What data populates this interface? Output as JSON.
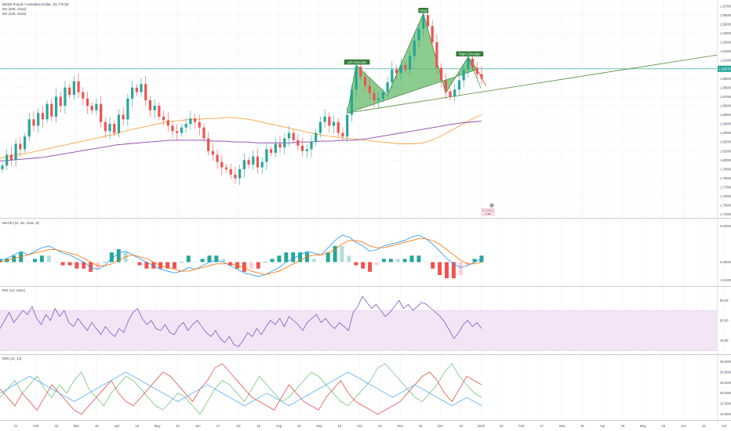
{
  "legend": {
    "symbol": "British Pound / Australian Dollar, 1D, FXCM",
    "ma200": "MA (200, close)",
    "ma100": "MA (100, close)",
    "macd": "MACD (12, 26, close, 9)",
    "rsi": "RSI (14, close)",
    "dmi": "DMI (14, 14)"
  },
  "colors": {
    "up": "#26a69a",
    "down": "#ef5350",
    "pattern_fill": "#66bb6a",
    "pattern_line": "#2e7d32",
    "ma100": "#f7a440",
    "ma200": "#8e44ad",
    "macd_line": "#2196f3",
    "signal_line": "#ff6d00",
    "rsi_line": "#7e57c2",
    "rsi_band": "#f3e5f5",
    "current_price": "#26a69a",
    "trendline": "#558b2f"
  },
  "chart_data": {
    "type": "candlestick",
    "price_axis": {
      "ticks": [
        "1.97000",
        "1.96000",
        "1.95000",
        "1.94000",
        "1.93000",
        "1.92000",
        "1.91000",
        "1.90000",
        "1.89000",
        "1.88000",
        "1.87000",
        "1.86000",
        "1.85000",
        "1.84000",
        "1.83000",
        "1.82000",
        "1.81000",
        "1.80000",
        "1.79000",
        "1.78000",
        "1.77000",
        "1.76000",
        "1.75000",
        "1.74000"
      ],
      "current_price": "1.90078"
    },
    "macd_axis": {
      "ticks": [
        "0.02000",
        "0.00000",
        "-0.01000"
      ]
    },
    "rsi_axis": {
      "ticks": [
        "80.00",
        "60.00",
        "40.00"
      ]
    },
    "dmi_axis": {
      "ticks": [
        "35.0000",
        "30.0000",
        "25.0000",
        "20.0000",
        "15.0000",
        "10.0000"
      ]
    },
    "time_axis": [
      "21",
      "Feb",
      "18",
      "Mar",
      "18",
      "Apr",
      "15",
      "May",
      "16",
      "Jun",
      "17",
      "Jul",
      "15",
      "Aug",
      "19",
      "Sep",
      "16",
      "Oct",
      "14",
      "Nov",
      "18",
      "Dec",
      "16",
      "2020",
      "20",
      "Feb",
      "17",
      "Mar",
      "16",
      "Apr",
      "20",
      "May",
      "18",
      "Jun",
      "15",
      "Jul"
    ],
    "pattern_labels": {
      "left": "Left Shoulder",
      "head": "Head",
      "right": "Right Shoulder"
    },
    "event_badge": {
      "line1": "2,7 (12,1)",
      "line2": "3-Jan"
    },
    "price_path": [
      1.794,
      1.806,
      1.8,
      1.818,
      1.812,
      1.826,
      1.845,
      1.838,
      1.852,
      1.845,
      1.862,
      1.848,
      1.87,
      1.86,
      1.88,
      1.872,
      1.887,
      1.875,
      1.868,
      1.86,
      1.855,
      1.862,
      1.842,
      1.832,
      1.84,
      1.83,
      1.85,
      1.845,
      1.868,
      1.88,
      1.875,
      1.884,
      1.866,
      1.855,
      1.86,
      1.848,
      1.844,
      1.838,
      1.832,
      1.83,
      1.836,
      1.84,
      1.846,
      1.842,
      1.836,
      1.824,
      1.81,
      1.806,
      1.798,
      1.792,
      1.79,
      1.784,
      1.78,
      1.79,
      1.8,
      1.795,
      1.804,
      1.792,
      1.798,
      1.812,
      1.808,
      1.818,
      1.814,
      1.824,
      1.83,
      1.822,
      1.816,
      1.81,
      1.812,
      1.82,
      1.83,
      1.842,
      1.848,
      1.838,
      1.842,
      1.83,
      1.826,
      1.85,
      1.878,
      1.903,
      1.892,
      1.882,
      1.874,
      1.866,
      1.868,
      1.875,
      1.886,
      1.9,
      1.896,
      1.905,
      1.9,
      1.915,
      1.932,
      1.945,
      1.96,
      1.948,
      1.93,
      1.902,
      1.888,
      1.876,
      1.87,
      1.878,
      1.888,
      1.9,
      1.912,
      1.902,
      1.895,
      1.89
    ],
    "ma100_path": [
      1.802,
      1.804,
      1.806,
      1.807,
      1.809,
      1.811,
      1.813,
      1.815,
      1.817,
      1.819,
      1.821,
      1.823,
      1.825,
      1.827,
      1.829,
      1.832,
      1.834,
      1.836,
      1.838,
      1.84,
      1.842,
      1.843,
      1.844,
      1.845,
      1.845,
      1.846,
      1.846,
      1.847,
      1.847,
      1.846,
      1.845,
      1.843,
      1.841,
      1.839,
      1.837,
      1.835,
      1.833,
      1.831,
      1.829,
      1.827,
      1.826,
      1.825,
      1.824,
      1.823,
      1.822,
      1.821,
      1.82,
      1.819,
      1.818,
      1.818,
      1.818,
      1.819,
      1.822,
      1.826,
      1.831,
      1.836,
      1.841,
      1.846,
      1.85
    ],
    "ma200_path": [
      1.799,
      1.8,
      1.801,
      1.802,
      1.803,
      1.805,
      1.807,
      1.809,
      1.811,
      1.813,
      1.815,
      1.817,
      1.818,
      1.819,
      1.82,
      1.821,
      1.822,
      1.822,
      1.822,
      1.822,
      1.821,
      1.821,
      1.82,
      1.82,
      1.819,
      1.819,
      1.819,
      1.819,
      1.82,
      1.82,
      1.821,
      1.821,
      1.822,
      1.822,
      1.823,
      1.825,
      1.827,
      1.829,
      1.831,
      1.833,
      1.835,
      1.837,
      1.839,
      1.841,
      1.842,
      1.843
    ],
    "macd_path": [
      0.001,
      0.002,
      0.004,
      0.006,
      0.004,
      0.006,
      0.008,
      0.009,
      0.007,
      0.005,
      0.004,
      0.002,
      0.0,
      -0.003,
      -0.004,
      -0.002,
      0.002,
      0.005,
      0.006,
      0.004,
      0.002,
      0.0,
      -0.002,
      -0.004,
      -0.005,
      -0.006,
      -0.005,
      -0.003,
      -0.004,
      -0.002,
      0.0,
      0.001,
      0.0,
      -0.002,
      -0.004,
      -0.006,
      -0.007,
      -0.008,
      -0.007,
      -0.005,
      -0.003,
      0.0,
      0.002,
      0.004,
      0.006,
      0.005,
      0.004,
      0.008,
      0.012,
      0.015,
      0.014,
      0.011,
      0.009,
      0.006,
      0.007,
      0.009,
      0.01,
      0.011,
      0.012,
      0.014,
      0.015,
      0.013,
      0.01,
      0.006,
      0.002,
      -0.001,
      -0.003,
      -0.002,
      0.0,
      0.002
    ],
    "signal_path": [
      0.0,
      0.001,
      0.002,
      0.003,
      0.004,
      0.005,
      0.006,
      0.007,
      0.007,
      0.006,
      0.005,
      0.004,
      0.002,
      0.0,
      -0.002,
      -0.002,
      -0.001,
      0.001,
      0.003,
      0.004,
      0.003,
      0.002,
      0.0,
      -0.002,
      -0.003,
      -0.004,
      -0.005,
      -0.005,
      -0.004,
      -0.003,
      -0.002,
      -0.001,
      -0.001,
      -0.001,
      -0.002,
      -0.003,
      -0.005,
      -0.006,
      -0.007,
      -0.006,
      -0.005,
      -0.003,
      -0.001,
      0.001,
      0.003,
      0.004,
      0.004,
      0.005,
      0.007,
      0.01,
      0.012,
      0.012,
      0.011,
      0.009,
      0.008,
      0.008,
      0.009,
      0.01,
      0.011,
      0.012,
      0.013,
      0.013,
      0.012,
      0.01,
      0.007,
      0.004,
      0.001,
      -0.001,
      -0.001,
      0.0
    ],
    "rsi_path": [
      52,
      60,
      68,
      58,
      64,
      70,
      66,
      74,
      62,
      56,
      66,
      60,
      72,
      64,
      70,
      58,
      54,
      62,
      56,
      50,
      58,
      52,
      46,
      54,
      48,
      44,
      52,
      48,
      60,
      68,
      72,
      62,
      56,
      60,
      52,
      50,
      56,
      48,
      46,
      54,
      58,
      50,
      56,
      60,
      54,
      48,
      44,
      50,
      42,
      38,
      44,
      36,
      34,
      40,
      48,
      44,
      52,
      46,
      54,
      60,
      56,
      62,
      54,
      64,
      60,
      56,
      50,
      58,
      62,
      66,
      58,
      62,
      56,
      52,
      58,
      54,
      50,
      68,
      74,
      84,
      78,
      72,
      76,
      70,
      64,
      68,
      74,
      80,
      72,
      76,
      70,
      74,
      78,
      76,
      72,
      68,
      64,
      58,
      50,
      42,
      48,
      56,
      60,
      54,
      58,
      52
    ],
    "dmi_plus_path": [
      18,
      22,
      26,
      20,
      24,
      28,
      22,
      18,
      24,
      20,
      26,
      30,
      22,
      18,
      14,
      20,
      24,
      28,
      26,
      22,
      18,
      14,
      12,
      16,
      20,
      18,
      14,
      10,
      16,
      22,
      26,
      24,
      20,
      16,
      22,
      28,
      24,
      20,
      16,
      18,
      22,
      26,
      30,
      28,
      24,
      20,
      16,
      14,
      18,
      22,
      26,
      32,
      34,
      30,
      26,
      22,
      18,
      16,
      20,
      24,
      30,
      34,
      28,
      24,
      20,
      18
    ],
    "dmi_minus_path": [
      22,
      18,
      14,
      20,
      16,
      12,
      18,
      24,
      20,
      16,
      12,
      10,
      14,
      18,
      22,
      26,
      20,
      16,
      14,
      18,
      22,
      26,
      30,
      28,
      24,
      20,
      16,
      22,
      26,
      32,
      34,
      30,
      26,
      22,
      18,
      16,
      14,
      12,
      18,
      24,
      20,
      16,
      14,
      12,
      18,
      22,
      26,
      20,
      16,
      14,
      12,
      10,
      12,
      14,
      16,
      20,
      24,
      28,
      30,
      26,
      20,
      16,
      22,
      28,
      26,
      24
    ],
    "adx_path": [
      20,
      22,
      24,
      26,
      28,
      26,
      24,
      22,
      20,
      18,
      16,
      18,
      20,
      22,
      24,
      26,
      28,
      30,
      28,
      26,
      24,
      22,
      20,
      18,
      16,
      18,
      20,
      22,
      24,
      22,
      20,
      18,
      16,
      14,
      16,
      18,
      20,
      18,
      16,
      14,
      16,
      18,
      20,
      22,
      24,
      26,
      28,
      30,
      28,
      26,
      24,
      22,
      20,
      18,
      20,
      22,
      24,
      22,
      20,
      18,
      16,
      14,
      16,
      18,
      16,
      14
    ]
  }
}
